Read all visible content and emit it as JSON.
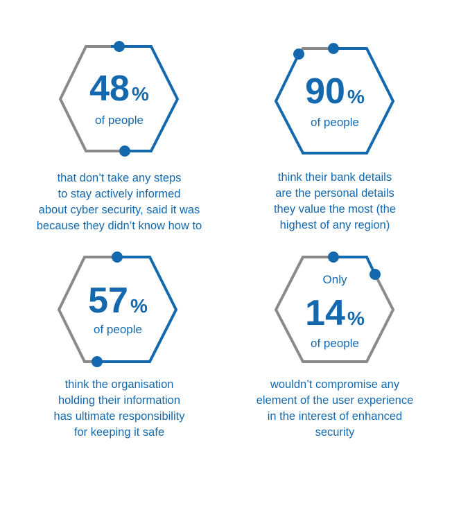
{
  "colors": {
    "blue": "#1468ad",
    "grey": "#8a8a8a"
  },
  "stats": [
    {
      "value": "48",
      "unit": "%",
      "prefix": "",
      "label": "of people",
      "caption": [
        "that don’t take any steps",
        "to stay actively informed",
        "about cyber security, said it was",
        "because they didn’t know how to"
      ]
    },
    {
      "value": "90",
      "unit": "%",
      "prefix": "",
      "label": "of people",
      "caption": [
        "think their bank details",
        "are the personal details",
        "they value the most (the",
        "highest of any region)"
      ]
    },
    {
      "value": "57",
      "unit": "%",
      "prefix": "",
      "label": "of people",
      "caption": [
        "think the organisation",
        "holding their information",
        "has ultimate responsibility",
        "for keeping it safe"
      ]
    },
    {
      "value": "14",
      "unit": "%",
      "prefix": "Only",
      "label": "of people",
      "caption": [
        "wouldn’t compromise any",
        "element of the user experience",
        "in the interest of enhanced",
        "security"
      ]
    }
  ]
}
